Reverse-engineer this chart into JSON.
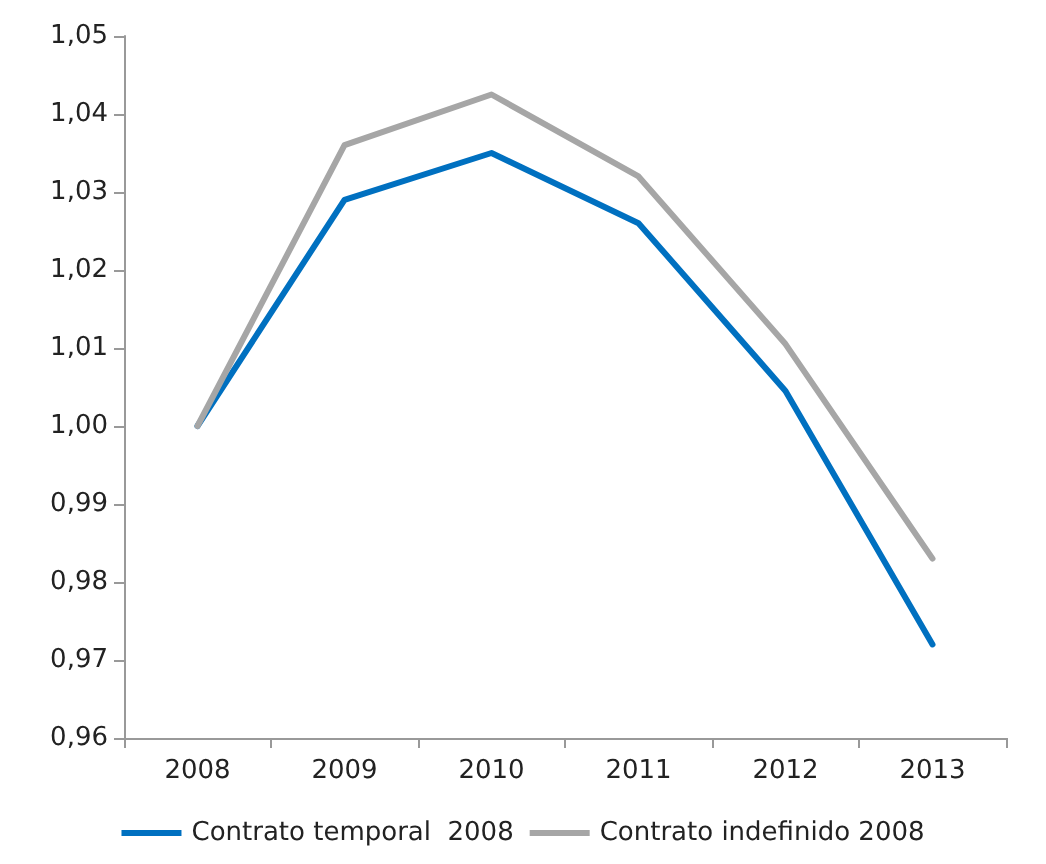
{
  "chart_data": {
    "type": "line",
    "categories": [
      "2008",
      "2009",
      "2010",
      "2011",
      "2012",
      "2013"
    ],
    "series": [
      {
        "name": "Contrato temporal  2008",
        "color": "#0070c0",
        "values": [
          1.0,
          1.029,
          1.035,
          1.026,
          1.0045,
          0.972
        ]
      },
      {
        "name": "Contrato indefinido 2008",
        "color": "#a6a6a6",
        "values": [
          1.0,
          1.036,
          1.0425,
          1.032,
          1.0105,
          0.983
        ]
      }
    ],
    "ylim": [
      0.96,
      1.05
    ],
    "yticks": [
      {
        "value": 0.96,
        "label": "0,96"
      },
      {
        "value": 0.97,
        "label": "0,97"
      },
      {
        "value": 0.98,
        "label": "0,98"
      },
      {
        "value": 0.99,
        "label": "0,99"
      },
      {
        "value": 1.0,
        "label": "1,00"
      },
      {
        "value": 1.01,
        "label": "1,01"
      },
      {
        "value": 1.02,
        "label": "1,02"
      },
      {
        "value": 1.03,
        "label": "1,03"
      },
      {
        "value": 1.04,
        "label": "1,04"
      },
      {
        "value": 1.05,
        "label": "1,05"
      }
    ],
    "grid": false,
    "legend": "bottom",
    "marker": "none",
    "line_style": "solid"
  }
}
